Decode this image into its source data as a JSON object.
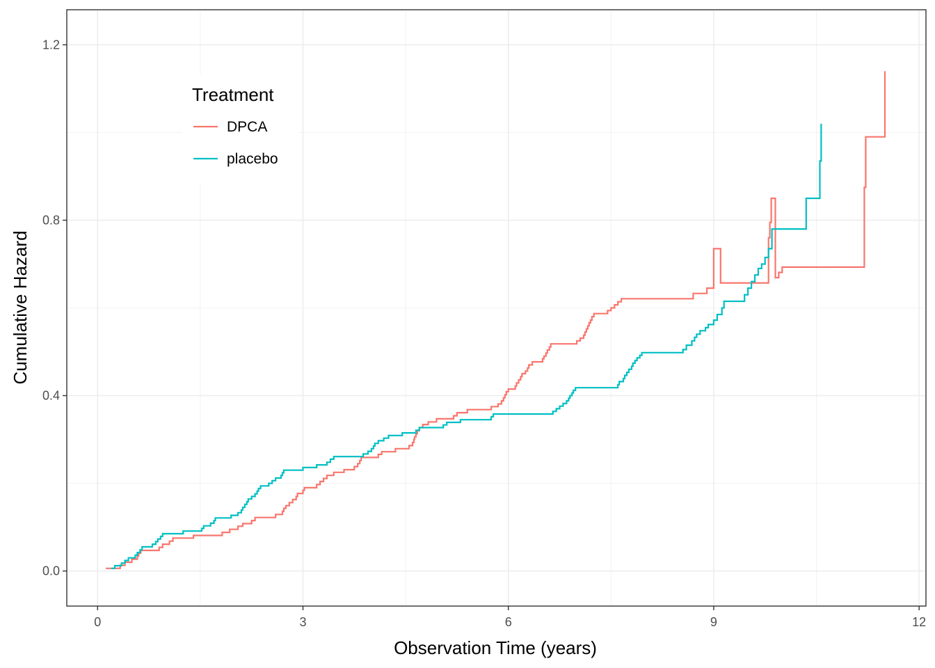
{
  "chart_data": {
    "type": "line",
    "step": true,
    "xlabel": "Observation Time (years)",
    "ylabel": "Cumulative Hazard",
    "xlim": [
      -0.45,
      12.1
    ],
    "ylim": [
      -0.08,
      1.28
    ],
    "xticks": [
      0,
      3,
      6,
      9,
      12
    ],
    "xtick_labels": [
      "0",
      "3",
      "6",
      "9",
      "12"
    ],
    "yticks": [
      0.0,
      0.4,
      0.8,
      1.2
    ],
    "ytick_labels": [
      "0.0",
      "0.4",
      "0.8",
      "1.2"
    ],
    "grid": true,
    "legend": {
      "title": "Treatment",
      "placement": "top-left-inside"
    },
    "series": [
      {
        "name": "DPCA",
        "color": "#F8766D",
        "points": [
          [
            0.12,
            0.006
          ],
          [
            0.33,
            0.013
          ],
          [
            0.4,
            0.02
          ],
          [
            0.5,
            0.027
          ],
          [
            0.58,
            0.034
          ],
          [
            0.6,
            0.041
          ],
          [
            0.63,
            0.047
          ],
          [
            0.9,
            0.054
          ],
          [
            0.95,
            0.061
          ],
          [
            1.05,
            0.068
          ],
          [
            1.1,
            0.075
          ],
          [
            1.4,
            0.081
          ],
          [
            1.82,
            0.088
          ],
          [
            1.93,
            0.095
          ],
          [
            2.05,
            0.102
          ],
          [
            2.12,
            0.108
          ],
          [
            2.25,
            0.115
          ],
          [
            2.3,
            0.122
          ],
          [
            2.6,
            0.129
          ],
          [
            2.7,
            0.136
          ],
          [
            2.72,
            0.143
          ],
          [
            2.75,
            0.149
          ],
          [
            2.8,
            0.156
          ],
          [
            2.85,
            0.163
          ],
          [
            2.9,
            0.17
          ],
          [
            2.92,
            0.177
          ],
          [
            3.0,
            0.184
          ],
          [
            3.02,
            0.19
          ],
          [
            3.2,
            0.197
          ],
          [
            3.25,
            0.204
          ],
          [
            3.3,
            0.211
          ],
          [
            3.35,
            0.218
          ],
          [
            3.45,
            0.225
          ],
          [
            3.6,
            0.231
          ],
          [
            3.75,
            0.238
          ],
          [
            3.8,
            0.245
          ],
          [
            3.83,
            0.252
          ],
          [
            3.85,
            0.259
          ],
          [
            4.1,
            0.266
          ],
          [
            4.15,
            0.272
          ],
          [
            4.35,
            0.279
          ],
          [
            4.55,
            0.286
          ],
          [
            4.6,
            0.293
          ],
          [
            4.62,
            0.3
          ],
          [
            4.63,
            0.306
          ],
          [
            4.65,
            0.313
          ],
          [
            4.67,
            0.32
          ],
          [
            4.7,
            0.327
          ],
          [
            4.75,
            0.334
          ],
          [
            4.83,
            0.34
          ],
          [
            4.95,
            0.347
          ],
          [
            5.2,
            0.354
          ],
          [
            5.25,
            0.361
          ],
          [
            5.4,
            0.368
          ],
          [
            5.75,
            0.375
          ],
          [
            5.85,
            0.381
          ],
          [
            5.9,
            0.388
          ],
          [
            5.93,
            0.395
          ],
          [
            5.95,
            0.402
          ],
          [
            5.97,
            0.409
          ],
          [
            6.0,
            0.415
          ],
          [
            6.1,
            0.422
          ],
          [
            6.12,
            0.429
          ],
          [
            6.15,
            0.436
          ],
          [
            6.18,
            0.443
          ],
          [
            6.2,
            0.45
          ],
          [
            6.25,
            0.456
          ],
          [
            6.28,
            0.463
          ],
          [
            6.3,
            0.47
          ],
          [
            6.35,
            0.477
          ],
          [
            6.5,
            0.484
          ],
          [
            6.52,
            0.49
          ],
          [
            6.55,
            0.497
          ],
          [
            6.57,
            0.504
          ],
          [
            6.6,
            0.511
          ],
          [
            6.62,
            0.518
          ],
          [
            7.0,
            0.525
          ],
          [
            7.05,
            0.531
          ],
          [
            7.1,
            0.538
          ],
          [
            7.12,
            0.545
          ],
          [
            7.14,
            0.552
          ],
          [
            7.16,
            0.559
          ],
          [
            7.18,
            0.566
          ],
          [
            7.2,
            0.572
          ],
          [
            7.22,
            0.58
          ],
          [
            7.25,
            0.587
          ],
          [
            7.45,
            0.594
          ],
          [
            7.5,
            0.6
          ],
          [
            7.55,
            0.607
          ],
          [
            7.6,
            0.614
          ],
          [
            7.65,
            0.621
          ],
          [
            8.7,
            0.633
          ],
          [
            8.9,
            0.645
          ],
          [
            9.1,
            0.657
          ],
          [
            9.9,
            0.669
          ],
          [
            9.95,
            0.681
          ],
          [
            10.0,
            0.693
          ],
          [
            9.0,
            0.693
          ],
          [
            9.0,
            0.735
          ],
          [
            9.8,
            0.76
          ],
          [
            9.82,
            0.795
          ],
          [
            9.84,
            0.85
          ],
          [
            11.2,
            0.875
          ],
          [
            11.22,
            0.99
          ],
          [
            11.5,
            1.14
          ]
        ]
      },
      {
        "name": "placebo",
        "color": "#00BFC4",
        "points": [
          [
            0.2,
            0.006
          ],
          [
            0.25,
            0.012
          ],
          [
            0.35,
            0.018
          ],
          [
            0.4,
            0.024
          ],
          [
            0.45,
            0.03
          ],
          [
            0.55,
            0.036
          ],
          [
            0.58,
            0.042
          ],
          [
            0.62,
            0.048
          ],
          [
            0.65,
            0.055
          ],
          [
            0.8,
            0.061
          ],
          [
            0.85,
            0.067
          ],
          [
            0.88,
            0.073
          ],
          [
            0.92,
            0.079
          ],
          [
            0.95,
            0.085
          ],
          [
            1.25,
            0.091
          ],
          [
            1.52,
            0.097
          ],
          [
            1.55,
            0.103
          ],
          [
            1.65,
            0.109
          ],
          [
            1.7,
            0.115
          ],
          [
            1.72,
            0.121
          ],
          [
            1.95,
            0.127
          ],
          [
            2.05,
            0.133
          ],
          [
            2.1,
            0.139
          ],
          [
            2.12,
            0.145
          ],
          [
            2.15,
            0.152
          ],
          [
            2.18,
            0.158
          ],
          [
            2.2,
            0.164
          ],
          [
            2.25,
            0.17
          ],
          [
            2.3,
            0.176
          ],
          [
            2.33,
            0.182
          ],
          [
            2.35,
            0.188
          ],
          [
            2.38,
            0.194
          ],
          [
            2.5,
            0.2
          ],
          [
            2.55,
            0.206
          ],
          [
            2.6,
            0.212
          ],
          [
            2.68,
            0.218
          ],
          [
            2.7,
            0.224
          ],
          [
            2.72,
            0.23
          ],
          [
            3.0,
            0.236
          ],
          [
            3.2,
            0.242
          ],
          [
            3.35,
            0.248
          ],
          [
            3.4,
            0.255
          ],
          [
            3.45,
            0.261
          ],
          [
            3.88,
            0.267
          ],
          [
            3.95,
            0.273
          ],
          [
            4.0,
            0.279
          ],
          [
            4.03,
            0.285
          ],
          [
            4.05,
            0.291
          ],
          [
            4.1,
            0.297
          ],
          [
            4.18,
            0.303
          ],
          [
            4.25,
            0.309
          ],
          [
            4.45,
            0.315
          ],
          [
            4.65,
            0.321
          ],
          [
            4.7,
            0.327
          ],
          [
            5.05,
            0.333
          ],
          [
            5.1,
            0.339
          ],
          [
            5.3,
            0.345
          ],
          [
            5.75,
            0.352
          ],
          [
            5.78,
            0.358
          ],
          [
            6.65,
            0.364
          ],
          [
            6.7,
            0.37
          ],
          [
            6.75,
            0.376
          ],
          [
            6.8,
            0.382
          ],
          [
            6.85,
            0.388
          ],
          [
            6.88,
            0.394
          ],
          [
            6.9,
            0.4
          ],
          [
            6.93,
            0.406
          ],
          [
            6.95,
            0.412
          ],
          [
            6.98,
            0.418
          ],
          [
            7.6,
            0.425
          ],
          [
            7.62,
            0.432
          ],
          [
            7.68,
            0.439
          ],
          [
            7.7,
            0.446
          ],
          [
            7.73,
            0.453
          ],
          [
            7.76,
            0.46
          ],
          [
            7.8,
            0.467
          ],
          [
            7.82,
            0.474
          ],
          [
            7.85,
            0.48
          ],
          [
            7.88,
            0.486
          ],
          [
            7.92,
            0.492
          ],
          [
            7.95,
            0.498
          ],
          [
            8.55,
            0.505
          ],
          [
            8.6,
            0.515
          ],
          [
            8.68,
            0.525
          ],
          [
            8.72,
            0.533
          ],
          [
            8.75,
            0.54
          ],
          [
            8.8,
            0.548
          ],
          [
            8.88,
            0.555
          ],
          [
            8.92,
            0.562
          ],
          [
            9.0,
            0.572
          ],
          [
            9.05,
            0.585
          ],
          [
            9.12,
            0.6
          ],
          [
            9.15,
            0.615
          ],
          [
            9.45,
            0.63
          ],
          [
            9.5,
            0.645
          ],
          [
            9.55,
            0.66
          ],
          [
            9.6,
            0.675
          ],
          [
            9.65,
            0.69
          ],
          [
            9.7,
            0.7
          ],
          [
            9.75,
            0.715
          ],
          [
            9.8,
            0.735
          ],
          [
            9.85,
            0.78
          ],
          [
            10.35,
            0.85
          ],
          [
            10.55,
            0.935
          ],
          [
            10.57,
            1.02
          ]
        ]
      }
    ]
  }
}
